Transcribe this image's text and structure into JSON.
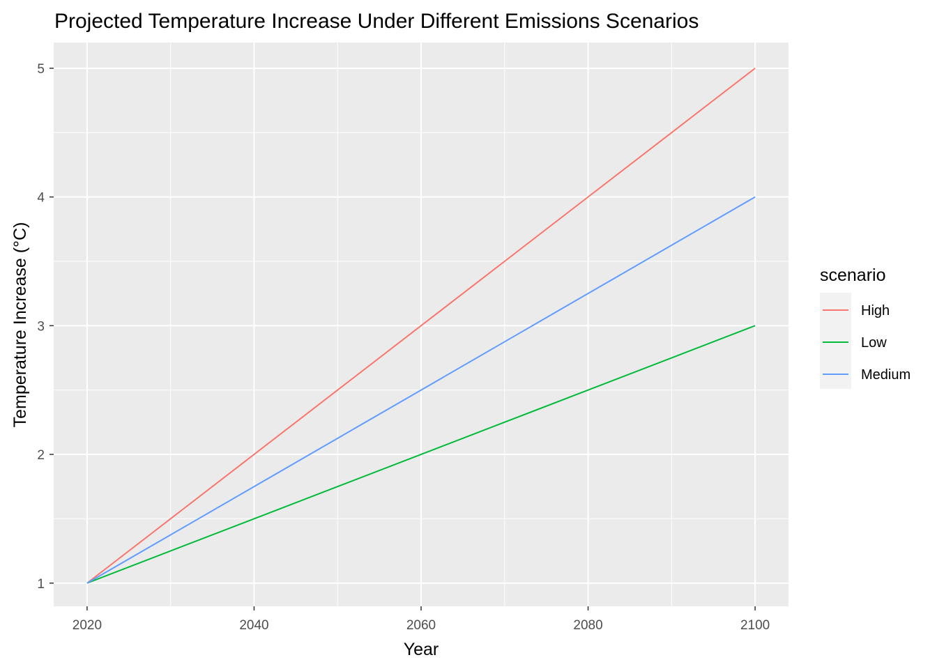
{
  "chart_data": {
    "type": "line",
    "title": "Projected Temperature Increase Under Different Emissions Scenarios",
    "xlabel": "Year",
    "ylabel": "Temperature Increase (°C)",
    "xlim": [
      2016,
      2104
    ],
    "ylim": [
      0.82,
      5.2
    ],
    "x_ticks": [
      2020,
      2040,
      2060,
      2080,
      2100
    ],
    "y_ticks": [
      1,
      2,
      3,
      4,
      5
    ],
    "grid": true,
    "legend": {
      "title": "scenario",
      "position": "right"
    },
    "x": [
      2020,
      2030,
      2040,
      2050,
      2060,
      2070,
      2080,
      2090,
      2100
    ],
    "series": [
      {
        "name": "High",
        "color": "#F8766D",
        "values": [
          1.0,
          1.5,
          2.0,
          2.5,
          3.0,
          3.5,
          4.0,
          4.5,
          5.0
        ]
      },
      {
        "name": "Low",
        "color": "#00BA38",
        "values": [
          1.0,
          1.25,
          1.5,
          1.75,
          2.0,
          2.25,
          2.5,
          2.75,
          3.0
        ]
      },
      {
        "name": "Medium",
        "color": "#619CFF",
        "values": [
          1.0,
          1.375,
          1.75,
          2.125,
          2.5,
          2.875,
          3.25,
          3.625,
          4.0
        ]
      }
    ]
  },
  "colors": {
    "panel_background": "#EBEBEB",
    "grid": "#FFFFFF",
    "legend_key_background": "#F2F2F2"
  }
}
